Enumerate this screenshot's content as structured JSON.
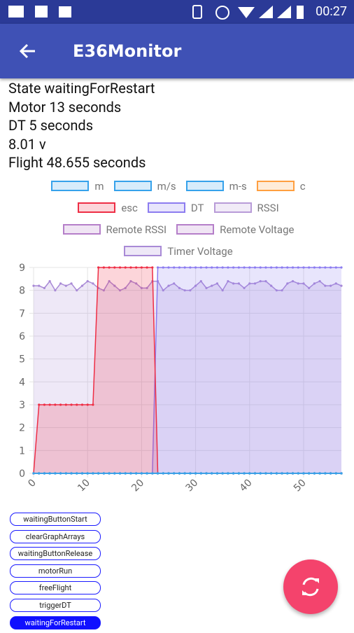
{
  "status_bar": {
    "time": "00:27"
  },
  "app_bar": {
    "title": "E36Monitor"
  },
  "status_lines": [
    "State waitingForRestart",
    "Motor 13 seconds",
    "DT 5 seconds",
    "8.01 v",
    "Flight 48.655 seconds"
  ],
  "chart_data": {
    "type": "line",
    "fill": true,
    "grid": true,
    "x": [
      0,
      1,
      2,
      3,
      4,
      5,
      6,
      7,
      8,
      9,
      10,
      11,
      12,
      13,
      14,
      15,
      16,
      17,
      18,
      19,
      20,
      21,
      22,
      23,
      24,
      25,
      26,
      27,
      28,
      29,
      30,
      31,
      32,
      33,
      34,
      35,
      36,
      37,
      38,
      39,
      40,
      41,
      42,
      43,
      44,
      45,
      46,
      47,
      48,
      49,
      50,
      51,
      52,
      53,
      54,
      55,
      56,
      57
    ],
    "xlim": [
      0,
      57
    ],
    "xticks": [
      0,
      10,
      20,
      30,
      40,
      50
    ],
    "ylim": [
      0,
      9
    ],
    "yticks": [
      0,
      1,
      2,
      3,
      4,
      5,
      6,
      7,
      8,
      9
    ],
    "series": [
      {
        "name": "m",
        "color": "#36a2eb",
        "values": [
          0,
          0,
          0,
          0,
          0,
          0,
          0,
          0,
          0,
          0,
          0,
          0,
          0,
          0,
          0,
          0,
          0,
          0,
          0,
          0,
          0,
          0,
          0,
          0,
          0,
          0,
          0,
          0,
          0,
          0,
          0,
          0,
          0,
          0,
          0,
          0,
          0,
          0,
          0,
          0,
          0,
          0,
          0,
          0,
          0,
          0,
          0,
          0,
          0,
          0,
          0,
          0,
          0,
          0,
          0,
          0,
          0,
          0
        ]
      },
      {
        "name": "m/s",
        "color": "#36a2eb",
        "values": [
          0,
          0,
          0,
          0,
          0,
          0,
          0,
          0,
          0,
          0,
          0,
          0,
          0,
          0,
          0,
          0,
          0,
          0,
          0,
          0,
          0,
          0,
          0,
          0,
          0,
          0,
          0,
          0,
          0,
          0,
          0,
          0,
          0,
          0,
          0,
          0,
          0,
          0,
          0,
          0,
          0,
          0,
          0,
          0,
          0,
          0,
          0,
          0,
          0,
          0,
          0,
          0,
          0,
          0,
          0,
          0,
          0,
          0
        ]
      },
      {
        "name": "m-s",
        "color": "#36a2eb",
        "values": [
          0,
          0,
          0,
          0,
          0,
          0,
          0,
          0,
          0,
          0,
          0,
          0,
          0,
          0,
          0,
          0,
          0,
          0,
          0,
          0,
          0,
          0,
          0,
          0,
          0,
          0,
          0,
          0,
          0,
          0,
          0,
          0,
          0,
          0,
          0,
          0,
          0,
          0,
          0,
          0,
          0,
          0,
          0,
          0,
          0,
          0,
          0,
          0,
          0,
          0,
          0,
          0,
          0,
          0,
          0,
          0,
          0,
          0
        ]
      },
      {
        "name": "c",
        "color": "#ff9f40",
        "values": [
          0,
          0,
          0,
          0,
          0,
          0,
          0,
          0,
          0,
          0,
          0,
          0,
          0,
          0,
          0,
          0,
          0,
          0,
          0,
          0,
          0,
          0,
          0,
          0,
          0,
          0,
          0,
          0,
          0,
          0,
          0,
          0,
          0,
          0,
          0,
          0,
          0,
          0,
          0,
          0,
          0,
          0,
          0,
          0,
          0,
          0,
          0,
          0,
          0,
          0,
          0,
          0,
          0,
          0,
          0,
          0,
          0,
          0
        ]
      },
      {
        "name": "esc",
        "color": "#ee2e45",
        "values": [
          0,
          3,
          3,
          3,
          3,
          3,
          3,
          3,
          3,
          3,
          3,
          3,
          9,
          9,
          9,
          9,
          9,
          9,
          9,
          9,
          9,
          9,
          9,
          0,
          0,
          0,
          0,
          0,
          0,
          0,
          0,
          0,
          0,
          0,
          0,
          0,
          0,
          0,
          0,
          0,
          0,
          0,
          0,
          0,
          0,
          0,
          0,
          0,
          0,
          0,
          0,
          0,
          0,
          0,
          0,
          0,
          0,
          0
        ]
      },
      {
        "name": "DT",
        "color": "#8c7cf0",
        "values": [
          0,
          0,
          0,
          0,
          0,
          0,
          0,
          0,
          0,
          0,
          0,
          0,
          0,
          0,
          0,
          0,
          0,
          0,
          0,
          0,
          0,
          0,
          0,
          9,
          9,
          9,
          9,
          9,
          9,
          9,
          9,
          9,
          9,
          9,
          9,
          9,
          9,
          9,
          9,
          9,
          9,
          9,
          9,
          9,
          9,
          9,
          9,
          9,
          9,
          9,
          9,
          9,
          9,
          9,
          9,
          9,
          9,
          9
        ]
      },
      {
        "name": "RSSI",
        "color": "#b89bd8",
        "values": [
          0,
          0,
          0,
          0,
          0,
          0,
          0,
          0,
          0,
          0,
          0,
          0,
          0,
          0,
          0,
          0,
          0,
          0,
          0,
          0,
          0,
          0,
          0,
          0,
          0,
          0,
          0,
          0,
          0,
          0,
          0,
          0,
          0,
          0,
          0,
          0,
          0,
          0,
          0,
          0,
          0,
          0,
          0,
          0,
          0,
          0,
          0,
          0,
          0,
          0,
          0,
          0,
          0,
          0,
          0,
          0,
          0,
          0
        ]
      },
      {
        "name": "Remote RSSI",
        "color": "#b57fc9",
        "values": [
          0,
          0,
          0,
          0,
          0,
          0,
          0,
          0,
          0,
          0,
          0,
          0,
          0,
          0,
          0,
          0,
          0,
          0,
          0,
          0,
          0,
          0,
          0,
          0,
          0,
          0,
          0,
          0,
          0,
          0,
          0,
          0,
          0,
          0,
          0,
          0,
          0,
          0,
          0,
          0,
          0,
          0,
          0,
          0,
          0,
          0,
          0,
          0,
          0,
          0,
          0,
          0,
          0,
          0,
          0,
          0,
          0,
          0
        ]
      },
      {
        "name": "Remote Voltage",
        "color": "#b57fc9",
        "values": [
          0,
          0,
          0,
          0,
          0,
          0,
          0,
          0,
          0,
          0,
          0,
          0,
          0,
          0,
          0,
          0,
          0,
          0,
          0,
          0,
          0,
          0,
          0,
          0,
          0,
          0,
          0,
          0,
          0,
          0,
          0,
          0,
          0,
          0,
          0,
          0,
          0,
          0,
          0,
          0,
          0,
          0,
          0,
          0,
          0,
          0,
          0,
          0,
          0,
          0,
          0,
          0,
          0,
          0,
          0,
          0,
          0,
          0
        ]
      },
      {
        "name": "Timer Voltage",
        "color": "#a98ad6",
        "values": [
          8.2,
          8.2,
          8.1,
          8.4,
          8.0,
          8.3,
          8.2,
          8.3,
          8.0,
          8.2,
          8.4,
          8.3,
          8.1,
          8.0,
          8.4,
          8.2,
          8.0,
          8.1,
          8.4,
          8.3,
          8.1,
          8.1,
          8.4,
          8.4,
          8.0,
          8.2,
          8.3,
          8.1,
          8.0,
          8.0,
          8.2,
          8.4,
          8.1,
          8.2,
          8.3,
          8.0,
          8.4,
          8.3,
          8.3,
          8.1,
          8.3,
          8.3,
          8.4,
          8.4,
          8.2,
          8.0,
          8.0,
          8.3,
          8.4,
          8.3,
          8.3,
          8.1,
          8.3,
          8.4,
          8.2,
          8.2,
          8.3,
          8.2
        ]
      }
    ]
  },
  "buttons": [
    {
      "label": "waitingButtonStart",
      "active": false
    },
    {
      "label": "clearGraphArrays",
      "active": false
    },
    {
      "label": "waitingButtonRelease",
      "active": false
    },
    {
      "label": "motorRun",
      "active": false
    },
    {
      "label": "freeFlight",
      "active": false
    },
    {
      "label": "triggerDT",
      "active": false
    },
    {
      "label": "waitingForRestart",
      "active": true
    }
  ]
}
